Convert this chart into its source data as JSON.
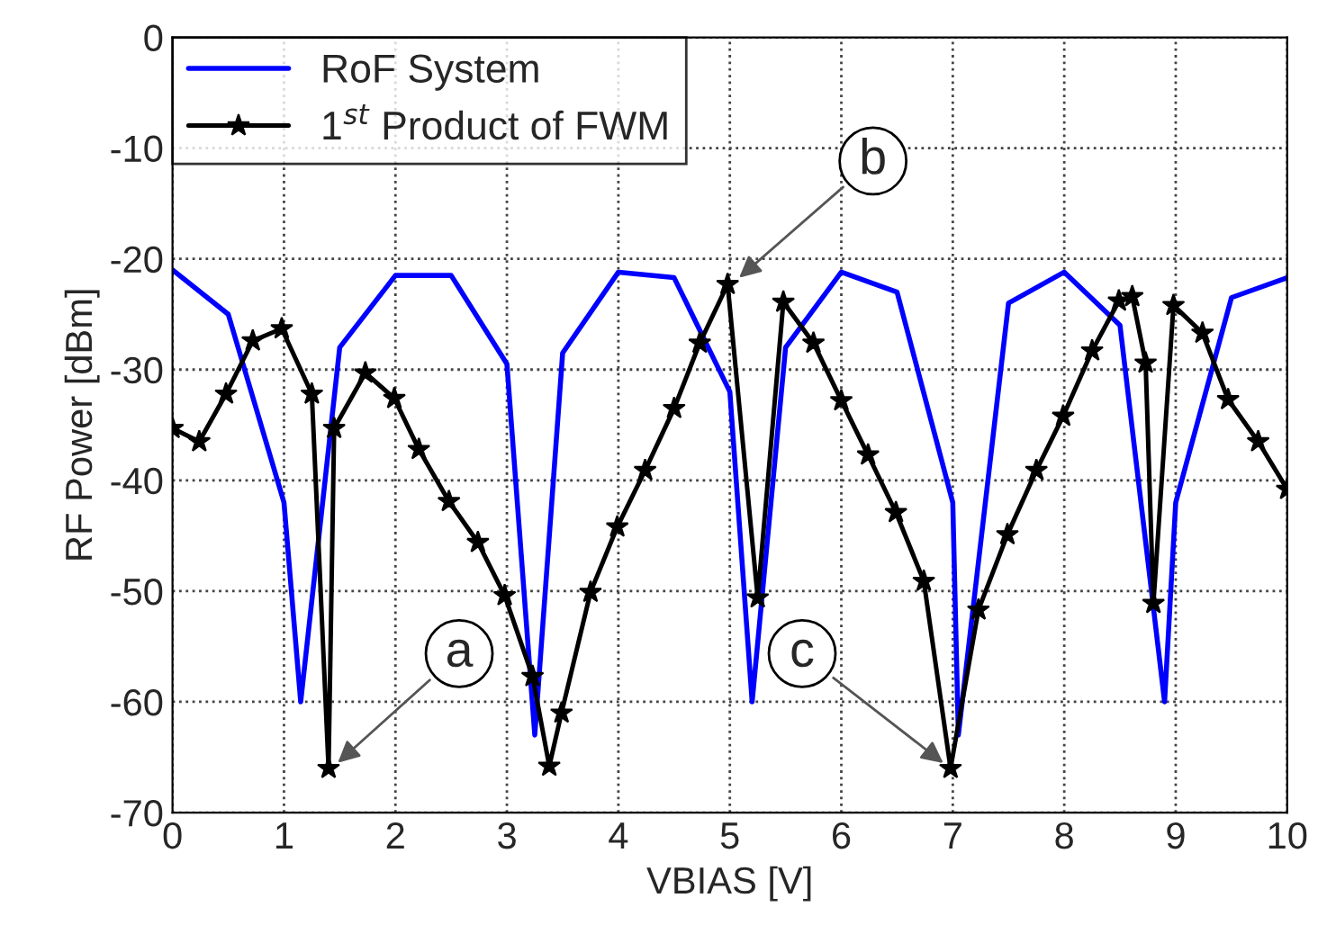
{
  "chart_data": {
    "type": "line",
    "xlabel": "VBIAS [V]",
    "ylabel": "RF Power [dBm]",
    "xlim": [
      0,
      10
    ],
    "ylim": [
      -70,
      0
    ],
    "xticks": [
      0,
      1,
      2,
      3,
      4,
      5,
      6,
      7,
      8,
      9,
      10
    ],
    "yticks": [
      -70,
      -60,
      -50,
      -40,
      -30,
      -20,
      -10,
      0
    ],
    "grid": true,
    "legend": "top left",
    "series": [
      {
        "name": "RoF System",
        "color": "#0000ff",
        "marker": "none",
        "x": [
          0,
          0.5,
          1,
          1.15,
          1.5,
          2,
          2.5,
          3,
          3.25,
          3.5,
          4,
          4.5,
          5,
          5.2,
          5.5,
          6,
          6.5,
          7,
          7.05,
          7.5,
          8,
          8.5,
          8.9,
          9,
          9.5,
          10
        ],
        "values": [
          -21,
          -25,
          -42,
          -60,
          -28,
          -21.5,
          -21.5,
          -29.5,
          -63,
          -28.5,
          -21.2,
          -21.7,
          -32,
          -60,
          -28,
          -21.2,
          -23,
          -42,
          -63,
          -24,
          -21.2,
          -26,
          -60,
          -42,
          -23.5,
          -21.7
        ]
      },
      {
        "name": "1$^{st}$ Product of FWM",
        "color": "#000000",
        "marker": "star",
        "x": [
          0,
          0.24,
          0.48,
          0.72,
          0.98,
          1.25,
          1.4,
          1.45,
          1.73,
          1.99,
          2.21,
          2.48,
          2.74,
          2.98,
          3.23,
          3.38,
          3.49,
          3.75,
          3.99,
          4.24,
          4.5,
          4.73,
          4.98,
          5.25,
          5.48,
          5.75,
          6.0,
          6.24,
          6.49,
          6.74,
          6.98,
          7.23,
          7.49,
          7.75,
          7.99,
          8.25,
          8.49,
          8.61,
          8.73,
          8.8,
          8.98,
          9.24,
          9.47,
          9.74,
          10
        ],
        "values": [
          -35.3,
          -36.5,
          -32.2,
          -27.4,
          -26.3,
          -32.2,
          -66,
          -35.3,
          -30.3,
          -32.6,
          -37.2,
          -41.9,
          -45.6,
          -50.4,
          -57.7,
          -65.8,
          -61,
          -50.1,
          -44.2,
          -39.1,
          -33.5,
          -27.6,
          -22.3,
          -50.6,
          -23.9,
          -27.6,
          -32.8,
          -37.7,
          -42.9,
          -49.1,
          -66,
          -51.7,
          -44.9,
          -39.1,
          -34.2,
          -28.3,
          -23.8,
          -23.4,
          -29.4,
          -51.1,
          -24.2,
          -26.7,
          -32.7,
          -36.5,
          -40.8
        ]
      }
    ],
    "annotations": [
      {
        "text": "a",
        "x": 1.45,
        "y": -65.8
      },
      {
        "text": "b",
        "x": 5.05,
        "y": -22
      },
      {
        "text": "c",
        "x": 6.95,
        "y": -65.8
      }
    ]
  }
}
